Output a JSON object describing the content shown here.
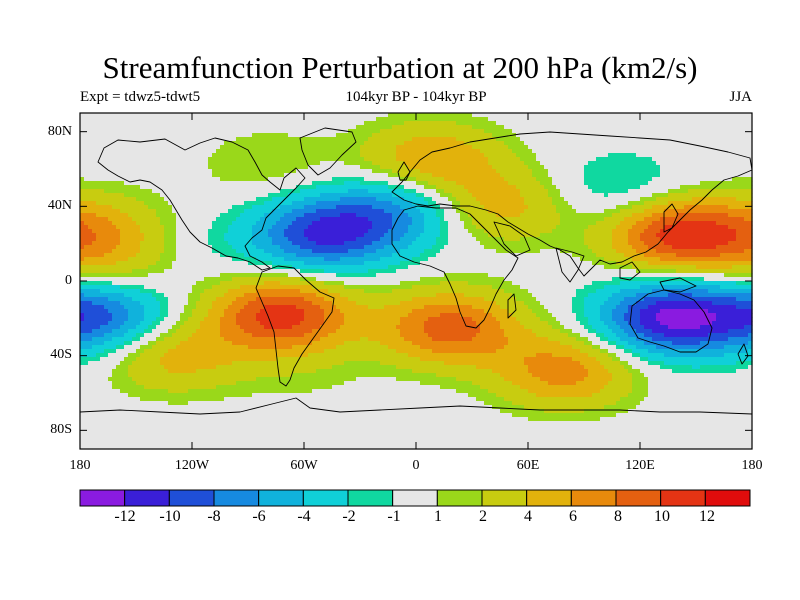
{
  "title": "Streamfunction Perturbation at 200 hPa (km2/s)",
  "subtitle_left": "Expt = tdwz5-tdwt5",
  "subtitle_center": "104kyr BP - 104kyr BP",
  "subtitle_right": "JJA",
  "lat_labels": [
    "80N",
    "40N",
    "0",
    "40S",
    "80S"
  ],
  "lon_labels": [
    "180",
    "120W",
    "60W",
    "0",
    "60E",
    "120E",
    "180"
  ],
  "colorbar": {
    "colors": [
      "#8a1be0",
      "#3a1fd8",
      "#1f4fd8",
      "#168ae0",
      "#10b2dc",
      "#10d0d8",
      "#10d8a0",
      "#e6e6e6",
      "#9ad81a",
      "#c8cc10",
      "#e2b20c",
      "#e88a0c",
      "#e46010",
      "#e43414",
      "#e00c0c"
    ],
    "labels": [
      "-12",
      "-10",
      "-8",
      "-6",
      "-4",
      "-2",
      "-1",
      "1",
      "2",
      "4",
      "6",
      "8",
      "10",
      "12"
    ]
  },
  "chart_data": {
    "type": "contour-map",
    "variable": "200 hPa streamfunction perturbation",
    "units": "km2/s",
    "season": "JJA",
    "levels": [
      -12,
      -10,
      -8,
      -6,
      -4,
      -2,
      -1,
      1,
      2,
      4,
      6,
      8,
      10,
      12
    ],
    "lon_range": [
      -180,
      180
    ],
    "lat_range": [
      -90,
      90
    ],
    "features": [
      {
        "lon": -170,
        "lat": 27,
        "value": 5
      },
      {
        "lon": -165,
        "lat": 5,
        "value": 3
      },
      {
        "lon": -170,
        "lat": -18,
        "value": -9
      },
      {
        "lon": -80,
        "lat": 62,
        "value": 2
      },
      {
        "lon": -50,
        "lat": 25,
        "value": -10
      },
      {
        "lon": -10,
        "lat": 38,
        "value": -6
      },
      {
        "lon": 45,
        "lat": 40,
        "value": 5
      },
      {
        "lon": 8,
        "lat": 65,
        "value": 6
      },
      {
        "lon": 140,
        "lat": 25,
        "value": 11
      },
      {
        "lon": 110,
        "lat": 48,
        "value": -3
      },
      {
        "lon": 135,
        "lat": -20,
        "value": -12
      },
      {
        "lon": -72,
        "lat": -18,
        "value": 11
      },
      {
        "lon": 18,
        "lat": -25,
        "value": 9
      },
      {
        "lon": -130,
        "lat": -40,
        "value": 5
      },
      {
        "lon": 80,
        "lat": -48,
        "value": 7
      },
      {
        "lon": -60,
        "lat": -50,
        "value": 1
      },
      {
        "lon": -115,
        "lat": 20,
        "value": -1
      }
    ]
  }
}
